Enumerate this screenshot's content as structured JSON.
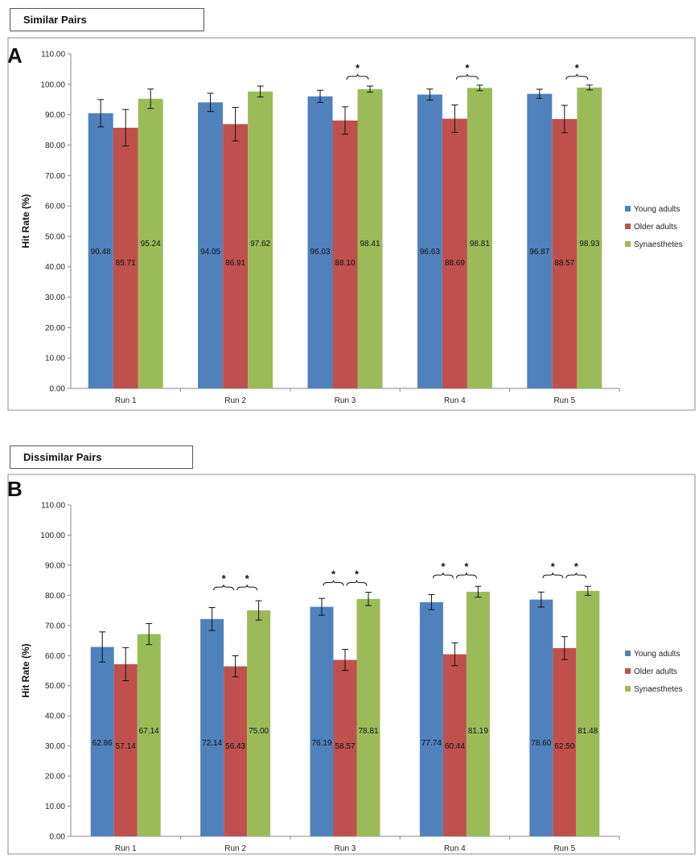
{
  "colors": {
    "young": "#4f81bd",
    "older": "#c0504d",
    "syn": "#9bbb59",
    "axis": "#888888",
    "frame": "#8c8c8c"
  },
  "chart_data": [
    {
      "type": "bar",
      "panel_label": "A",
      "title": "Similar Pairs",
      "ylabel": "Hit Rate (%)",
      "ylim": [
        0,
        110
      ],
      "yticks": [
        "0.00",
        "10.00",
        "20.00",
        "30.00",
        "40.00",
        "50.00",
        "60.00",
        "70.00",
        "80.00",
        "90.00",
        "100.00",
        "110.00"
      ],
      "categories": [
        "Run 1",
        "Run 2",
        "Run 3",
        "Run 4",
        "Run 5"
      ],
      "series": [
        {
          "name": "Young adults",
          "key": "young",
          "values": [
            90.48,
            94.05,
            96.03,
            96.63,
            96.87
          ],
          "labels": [
            "90.48",
            "94.05",
            "96.03",
            "96.63",
            "96.87"
          ],
          "errors": [
            4.5,
            3,
            2,
            1.8,
            1.5
          ]
        },
        {
          "name": "Older adults",
          "key": "older",
          "values": [
            85.71,
            86.91,
            88.1,
            88.69,
            88.57
          ],
          "labels": [
            "85.71",
            "86.91",
            "88.10",
            "88.69",
            "88.57"
          ],
          "errors": [
            6,
            5.5,
            4.5,
            4.5,
            4.5
          ]
        },
        {
          "name": "Synaesthetes",
          "key": "syn",
          "values": [
            95.24,
            97.62,
            98.41,
            98.81,
            98.93
          ],
          "labels": [
            "95.24",
            "97.62",
            "98.41",
            "98.81",
            "98.93"
          ],
          "errors": [
            3.2,
            1.8,
            1,
            0.9,
            0.8
          ]
        }
      ],
      "significance": [
        {
          "category": 2,
          "from": 1,
          "to": 2,
          "mark": "*"
        },
        {
          "category": 3,
          "from": 1,
          "to": 2,
          "mark": "*"
        },
        {
          "category": 4,
          "from": 1,
          "to": 2,
          "mark": "*"
        }
      ]
    },
    {
      "type": "bar",
      "panel_label": "B",
      "title": "Dissimilar Pairs",
      "ylabel": "Hit Rate (%)",
      "ylim": [
        0,
        110
      ],
      "yticks": [
        "0.00",
        "10.00",
        "20.00",
        "30.00",
        "40.00",
        "50.00",
        "60.00",
        "70.00",
        "80.00",
        "90.00",
        "100.00",
        "110.00"
      ],
      "categories": [
        "Run 1",
        "Run 2",
        "Run 3",
        "Run 4",
        "Run 5"
      ],
      "series": [
        {
          "name": "Young adults",
          "key": "young",
          "values": [
            62.86,
            72.14,
            76.19,
            77.74,
            78.6
          ],
          "labels": [
            "62.86",
            "72.14",
            "76.19",
            "77.74",
            "78.60"
          ],
          "errors": [
            5,
            3.8,
            2.8,
            2.5,
            2.5
          ]
        },
        {
          "name": "Older adults",
          "key": "older",
          "values": [
            57.14,
            56.43,
            58.57,
            60.44,
            62.5
          ],
          "labels": [
            "57.14",
            "56.43",
            "58.57",
            "60.44",
            "62.50"
          ],
          "errors": [
            5.5,
            3.5,
            3.5,
            3.8,
            3.8
          ]
        },
        {
          "name": "Synaesthetes",
          "key": "syn",
          "values": [
            67.14,
            75.0,
            78.81,
            81.19,
            81.48
          ],
          "labels": [
            "67.14",
            "75.00",
            "78.81",
            "81.19",
            "81.48"
          ],
          "errors": [
            3.5,
            3.2,
            2.2,
            1.8,
            1.5
          ]
        }
      ],
      "significance": [
        {
          "category": 1,
          "from": 0,
          "to": 1,
          "mark": "*"
        },
        {
          "category": 1,
          "from": 1,
          "to": 2,
          "mark": "*"
        },
        {
          "category": 2,
          "from": 0,
          "to": 1,
          "mark": "*"
        },
        {
          "category": 2,
          "from": 1,
          "to": 2,
          "mark": "*"
        },
        {
          "category": 3,
          "from": 0,
          "to": 1,
          "mark": "*"
        },
        {
          "category": 3,
          "from": 1,
          "to": 2,
          "mark": "*"
        },
        {
          "category": 4,
          "from": 0,
          "to": 1,
          "mark": "*"
        },
        {
          "category": 4,
          "from": 1,
          "to": 2,
          "mark": "*"
        }
      ]
    }
  ]
}
